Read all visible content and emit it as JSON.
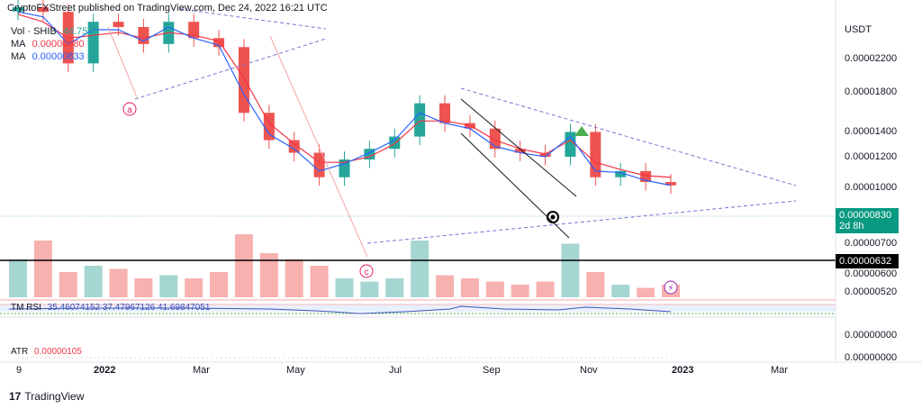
{
  "header": {
    "publisher": "CryptoFXStreet published on TradingView.com, Dec 24, 2022 16:21 UTC"
  },
  "legend": {
    "vol_label": "Vol · SHIB",
    "vol_value": "44.753B",
    "ma1_label": "MA",
    "ma1_value": "0.00000880",
    "ma2_label": "MA",
    "ma2_value": "0.00000833",
    "rsi_label": "TM RSI",
    "rsi_values": "35.46074152  37.47967126  41.69847051",
    "atr_label": "ATR",
    "atr_value": "0.00000105"
  },
  "price_axis": {
    "currency": "USDT",
    "ticks": [
      "0.00002200",
      "0.00001800",
      "0.00001400",
      "0.00001200",
      "0.00001000",
      "0.00000700",
      "0.00000600",
      "0.00000520"
    ],
    "current_price": "0.00000830",
    "countdown": "2d 8h",
    "support_level": "0.00000632",
    "atr_ticks": [
      "0.00000000",
      "0.00000000"
    ]
  },
  "time_axis": {
    "labels": [
      "9",
      "2022",
      "Mar",
      "May",
      "Jul",
      "Sep",
      "Nov",
      "2023",
      "Mar"
    ]
  },
  "annotations": {
    "point_a": "a",
    "point_c": "c"
  },
  "footer": {
    "brand": "TradingView",
    "logo_icon": "tradingview-logo-icon"
  },
  "colors": {
    "up": "#26a69a",
    "down": "#ef5350",
    "ma1": "#f23645",
    "ma2": "#2962ff",
    "tag": "#089981",
    "dashed": "#7e6fd6"
  },
  "chart_data": {
    "type": "candlestick",
    "title": "",
    "symbol": "SHIB/USDT",
    "x": [
      "2021-12-27",
      "2022-01-10",
      "2022-01-24",
      "2022-02-07",
      "2022-02-21",
      "2022-03-07",
      "2022-03-21",
      "2022-04-04",
      "2022-04-18",
      "2022-05-02",
      "2022-05-16",
      "2022-05-30",
      "2022-06-13",
      "2022-06-27",
      "2022-07-11",
      "2022-07-25",
      "2022-08-08",
      "2022-08-22",
      "2022-09-05",
      "2022-09-19",
      "2022-10-03",
      "2022-10-17",
      "2022-10-31",
      "2022-11-14",
      "2022-11-28",
      "2022-12-12",
      "2022-12-24"
    ],
    "close": [
      3e-05,
      2.9e-05,
      2e-05,
      2.7e-05,
      2.6e-05,
      2.3e-05,
      2.7e-05,
      2.4e-05,
      2.25e-05,
      1.4e-05,
      1.15e-05,
      1.05e-05,
      8.8e-06,
      1e-05,
      1.08e-05,
      1.18e-05,
      1.5e-05,
      1.3e-05,
      1.25e-05,
      1.08e-05,
      1.05e-05,
      1.02e-05,
      1.22e-05,
      8.8e-06,
      9.2e-06,
      8.5e-06,
      8.3e-06
    ],
    "series": [
      {
        "name": "MA",
        "values": [
          2.85e-05,
          2.7e-05,
          2.4e-05,
          2.45e-05,
          2.5e-05,
          2.4e-05,
          2.5e-05,
          2.45e-05,
          2.35e-05,
          1.8e-05,
          1.3e-05,
          1.12e-05,
          9.8e-06,
          9.8e-06,
          1.02e-05,
          1.12e-05,
          1.32e-05,
          1.32e-05,
          1.28e-05,
          1.15e-05,
          1.08e-05,
          1.04e-05,
          1.15e-05,
          9.8e-06,
          9.3e-06,
          8.9e-06,
          8.8e-06
        ]
      },
      {
        "name": "MA",
        "values": [
          2.9e-05,
          2.8e-05,
          2.3e-05,
          2.55e-05,
          2.55e-05,
          2.35e-05,
          2.6e-05,
          2.4e-05,
          2.28e-05,
          1.6e-05,
          1.2e-05,
          1.08e-05,
          9.2e-06,
          9.7e-06,
          1.05e-05,
          1.15e-05,
          1.4e-05,
          1.3e-05,
          1.25e-05,
          1.1e-05,
          1.05e-05,
          1.02e-05,
          1.18e-05,
          9.2e-06,
          9.1e-06,
          8.6e-06,
          8.3e-06
        ]
      }
    ],
    "volume_scale": "relative",
    "volume": [
      0.6,
      0.9,
      0.4,
      0.5,
      0.45,
      0.3,
      0.35,
      0.3,
      0.4,
      1.0,
      0.7,
      0.6,
      0.5,
      0.3,
      0.25,
      0.3,
      0.9,
      0.35,
      0.3,
      0.25,
      0.2,
      0.25,
      0.85,
      0.4,
      0.2,
      0.15,
      0.2
    ],
    "ylim": [
      4.8e-06,
      3e-05
    ],
    "y_scale": "log",
    "legend": "top-left",
    "grid": false
  }
}
